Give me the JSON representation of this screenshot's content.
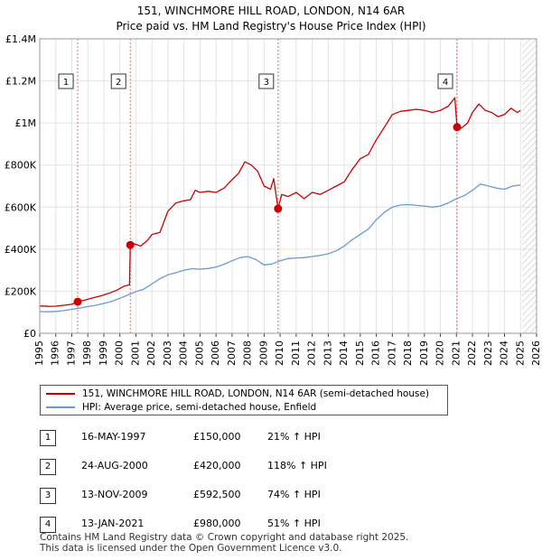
{
  "chart_data": {
    "type": "line",
    "title": "151, WINCHMORE HILL ROAD, LONDON, N14 6AR",
    "subtitle": "Price paid vs. HM Land Registry's House Price Index (HPI)",
    "xlim": [
      1995,
      2026
    ],
    "ylim": [
      0,
      1400000
    ],
    "x_ticks": [
      "1995",
      "1996",
      "1997",
      "1998",
      "1999",
      "2000",
      "2001",
      "2002",
      "2003",
      "2004",
      "2005",
      "2006",
      "2007",
      "2008",
      "2009",
      "2010",
      "2011",
      "2012",
      "2013",
      "2014",
      "2015",
      "2016",
      "2017",
      "2018",
      "2019",
      "2020",
      "2021",
      "2022",
      "2023",
      "2024",
      "2025",
      "2026"
    ],
    "y_ticks": [
      {
        "value": 0,
        "label": "£0"
      },
      {
        "value": 200000,
        "label": "£200K"
      },
      {
        "value": 400000,
        "label": "£400K"
      },
      {
        "value": 600000,
        "label": "£600K"
      },
      {
        "value": 800000,
        "label": "£800K"
      },
      {
        "value": 1000000,
        "label": "£1M"
      },
      {
        "value": 1200000,
        "label": "£1.2M"
      },
      {
        "value": 1400000,
        "label": "£1.4M"
      }
    ],
    "future_start": 2025.1,
    "series": [
      {
        "name": "151, WINCHMORE HILL ROAD, LONDON, N14 6AR (semi-detached house)",
        "color": "#cc0000",
        "points": [
          [
            1995.0,
            130000
          ],
          [
            1995.5,
            128000
          ],
          [
            1996.0,
            129000
          ],
          [
            1996.5,
            133000
          ],
          [
            1997.0,
            138000
          ],
          [
            1997.37,
            150000
          ],
          [
            1997.8,
            158000
          ],
          [
            1998.3,
            168000
          ],
          [
            1998.8,
            178000
          ],
          [
            1999.3,
            190000
          ],
          [
            1999.8,
            205000
          ],
          [
            2000.3,
            225000
          ],
          [
            2000.6,
            230000
          ],
          [
            2000.65,
            420000
          ],
          [
            2000.9,
            425000
          ],
          [
            2001.3,
            415000
          ],
          [
            2001.7,
            440000
          ],
          [
            2002.0,
            470000
          ],
          [
            2002.5,
            480000
          ],
          [
            2003.0,
            580000
          ],
          [
            2003.5,
            620000
          ],
          [
            2004.0,
            630000
          ],
          [
            2004.4,
            635000
          ],
          [
            2004.7,
            680000
          ],
          [
            2005.0,
            670000
          ],
          [
            2005.5,
            675000
          ],
          [
            2006.0,
            670000
          ],
          [
            2006.5,
            690000
          ],
          [
            2007.0,
            730000
          ],
          [
            2007.4,
            760000
          ],
          [
            2007.8,
            815000
          ],
          [
            2008.2,
            800000
          ],
          [
            2008.6,
            770000
          ],
          [
            2009.0,
            700000
          ],
          [
            2009.4,
            685000
          ],
          [
            2009.6,
            735000
          ],
          [
            2009.87,
            592500
          ],
          [
            2010.1,
            660000
          ],
          [
            2010.5,
            650000
          ],
          [
            2011.0,
            670000
          ],
          [
            2011.5,
            640000
          ],
          [
            2012.0,
            670000
          ],
          [
            2012.5,
            660000
          ],
          [
            2013.0,
            680000
          ],
          [
            2013.5,
            700000
          ],
          [
            2014.0,
            720000
          ],
          [
            2014.5,
            780000
          ],
          [
            2015.0,
            830000
          ],
          [
            2015.5,
            850000
          ],
          [
            2016.0,
            920000
          ],
          [
            2016.5,
            980000
          ],
          [
            2017.0,
            1040000
          ],
          [
            2017.5,
            1055000
          ],
          [
            2018.0,
            1060000
          ],
          [
            2018.5,
            1065000
          ],
          [
            2019.0,
            1060000
          ],
          [
            2019.5,
            1050000
          ],
          [
            2020.0,
            1060000
          ],
          [
            2020.5,
            1080000
          ],
          [
            2020.9,
            1120000
          ],
          [
            2021.04,
            980000
          ],
          [
            2021.3,
            975000
          ],
          [
            2021.7,
            1000000
          ],
          [
            2022.0,
            1050000
          ],
          [
            2022.4,
            1090000
          ],
          [
            2022.8,
            1060000
          ],
          [
            2023.2,
            1050000
          ],
          [
            2023.6,
            1030000
          ],
          [
            2024.0,
            1040000
          ],
          [
            2024.4,
            1070000
          ],
          [
            2024.8,
            1050000
          ],
          [
            2025.0,
            1060000
          ]
        ]
      },
      {
        "name": "HPI: Average price, semi-detached house, Enfield",
        "color": "#6a9ad4",
        "points": [
          [
            1995.0,
            103000
          ],
          [
            1995.5,
            102000
          ],
          [
            1996.0,
            104000
          ],
          [
            1996.5,
            108000
          ],
          [
            1997.0,
            114000
          ],
          [
            1997.5,
            120000
          ],
          [
            1998.0,
            127000
          ],
          [
            1998.5,
            133000
          ],
          [
            1999.0,
            142000
          ],
          [
            1999.5,
            152000
          ],
          [
            2000.0,
            166000
          ],
          [
            2000.5,
            182000
          ],
          [
            2001.0,
            198000
          ],
          [
            2001.5,
            210000
          ],
          [
            2002.0,
            235000
          ],
          [
            2002.5,
            260000
          ],
          [
            2003.0,
            278000
          ],
          [
            2003.5,
            288000
          ],
          [
            2004.0,
            300000
          ],
          [
            2004.5,
            307000
          ],
          [
            2005.0,
            305000
          ],
          [
            2005.5,
            308000
          ],
          [
            2006.0,
            315000
          ],
          [
            2006.5,
            328000
          ],
          [
            2007.0,
            345000
          ],
          [
            2007.5,
            360000
          ],
          [
            2008.0,
            365000
          ],
          [
            2008.5,
            350000
          ],
          [
            2009.0,
            325000
          ],
          [
            2009.5,
            330000
          ],
          [
            2010.0,
            345000
          ],
          [
            2010.5,
            355000
          ],
          [
            2011.0,
            358000
          ],
          [
            2011.5,
            360000
          ],
          [
            2012.0,
            365000
          ],
          [
            2012.5,
            370000
          ],
          [
            2013.0,
            378000
          ],
          [
            2013.5,
            392000
          ],
          [
            2014.0,
            415000
          ],
          [
            2014.5,
            445000
          ],
          [
            2015.0,
            470000
          ],
          [
            2015.5,
            495000
          ],
          [
            2016.0,
            540000
          ],
          [
            2016.5,
            575000
          ],
          [
            2017.0,
            600000
          ],
          [
            2017.5,
            610000
          ],
          [
            2018.0,
            612000
          ],
          [
            2018.5,
            608000
          ],
          [
            2019.0,
            605000
          ],
          [
            2019.5,
            600000
          ],
          [
            2020.0,
            605000
          ],
          [
            2020.5,
            620000
          ],
          [
            2021.0,
            640000
          ],
          [
            2021.5,
            655000
          ],
          [
            2022.0,
            680000
          ],
          [
            2022.5,
            710000
          ],
          [
            2023.0,
            700000
          ],
          [
            2023.5,
            690000
          ],
          [
            2024.0,
            685000
          ],
          [
            2024.5,
            700000
          ],
          [
            2025.0,
            705000
          ]
        ]
      }
    ],
    "sales": [
      {
        "num": "1",
        "x": 1997.37,
        "price": 150000,
        "date": "16-MAY-1997",
        "price_label": "£150,000",
        "hpi_label": "21% ↑ HPI"
      },
      {
        "num": "2",
        "x": 2000.65,
        "price": 420000,
        "date": "24-AUG-2000",
        "price_label": "£420,000",
        "hpi_label": "118% ↑ HPI"
      },
      {
        "num": "3",
        "x": 2009.87,
        "price": 592500,
        "date": "13-NOV-2009",
        "price_label": "£592,500",
        "hpi_label": "74% ↑ HPI"
      },
      {
        "num": "4",
        "x": 2021.04,
        "price": 980000,
        "date": "13-JAN-2021",
        "price_label": "£980,000",
        "hpi_label": "51% ↑ HPI"
      }
    ]
  },
  "legend": {
    "property_label": "151, WINCHMORE HILL ROAD, LONDON, N14 6AR (semi-detached house)",
    "hpi_label": "HPI: Average price, semi-detached house, Enfield"
  },
  "footer": {
    "line1": "Contains HM Land Registry data © Crown copyright and database right 2025.",
    "line2": "This data is licensed under the Open Government Licence v3.0."
  }
}
